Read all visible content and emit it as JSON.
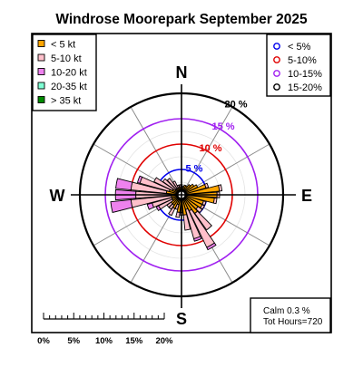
{
  "chart_data": {
    "type": "windrose",
    "title": "Windrose  Moorepark September 2025",
    "compass": {
      "n": "N",
      "e": "E",
      "s": "S",
      "w": "W"
    },
    "rmax_percent": 20,
    "rings": [
      {
        "value": 5,
        "label": "5 %",
        "color": "#0000ee"
      },
      {
        "value": 10,
        "label": "10 %",
        "color": "#e00000"
      },
      {
        "value": 15,
        "label": "15 %",
        "color": "#a020f0"
      },
      {
        "value": 20,
        "label": "20 %",
        "color": "#000000"
      }
    ],
    "speed_classes": [
      {
        "label": "< 5  kt",
        "color": "#ffa500"
      },
      {
        "label": "5-10 kt",
        "color": "#ffc0cb"
      },
      {
        "label": "10-20 kt",
        "color": "#ee82ee"
      },
      {
        "label": "20-35 kt",
        "color": "#7fffd4"
      },
      {
        "label": "> 35 kt",
        "color": "#008b00"
      }
    ],
    "ring_legend": [
      {
        "label": "< 5%",
        "color": "#0000ee"
      },
      {
        "label": "5-10%",
        "color": "#e00000"
      },
      {
        "label": "10-15%",
        "color": "#a020f0"
      },
      {
        "label": "15-20%",
        "color": "#000000"
      }
    ],
    "sector_count": 36,
    "sector_width_deg": 10,
    "sectors": [
      {
        "dir": 0,
        "values": [
          1.5,
          0.5,
          0,
          0,
          0
        ]
      },
      {
        "dir": 10,
        "values": [
          1.5,
          0.2,
          0,
          0,
          0
        ]
      },
      {
        "dir": 20,
        "values": [
          2.0,
          0,
          0,
          0,
          0
        ]
      },
      {
        "dir": 30,
        "values": [
          2.0,
          0,
          0,
          0,
          0
        ]
      },
      {
        "dir": 40,
        "values": [
          2.5,
          0,
          0,
          0,
          0
        ]
      },
      {
        "dir": 50,
        "values": [
          3.0,
          0,
          0,
          0,
          0
        ]
      },
      {
        "dir": 60,
        "values": [
          3.5,
          0,
          0,
          0,
          0
        ]
      },
      {
        "dir": 70,
        "values": [
          5.0,
          0.5,
          0,
          0,
          0
        ]
      },
      {
        "dir": 80,
        "values": [
          7.5,
          0.5,
          0,
          0,
          0
        ]
      },
      {
        "dir": 90,
        "values": [
          7.0,
          0.5,
          0,
          0,
          0
        ]
      },
      {
        "dir": 100,
        "values": [
          6.5,
          0.5,
          0,
          0,
          0
        ]
      },
      {
        "dir": 110,
        "values": [
          4.5,
          0.5,
          0,
          0,
          0
        ]
      },
      {
        "dir": 120,
        "values": [
          4.5,
          0.5,
          0,
          0,
          0
        ]
      },
      {
        "dir": 130,
        "values": [
          4.0,
          1.0,
          0,
          0,
          0
        ]
      },
      {
        "dir": 140,
        "values": [
          4.5,
          4.0,
          0,
          0,
          0
        ]
      },
      {
        "dir": 150,
        "values": [
          3.5,
          8.0,
          0.5,
          0,
          0
        ]
      },
      {
        "dir": 160,
        "values": [
          3.0,
          6.0,
          0.5,
          0,
          0
        ]
      },
      {
        "dir": 170,
        "values": [
          4.0,
          3.0,
          0,
          0,
          0
        ]
      },
      {
        "dir": 180,
        "values": [
          3.5,
          0.5,
          0,
          0,
          0
        ]
      },
      {
        "dir": 190,
        "values": [
          3.5,
          1.0,
          0,
          0,
          0
        ]
      },
      {
        "dir": 200,
        "values": [
          2.0,
          1.0,
          0,
          0,
          0
        ]
      },
      {
        "dir": 210,
        "values": [
          3.0,
          1.5,
          0,
          0,
          0
        ]
      },
      {
        "dir": 220,
        "values": [
          2.5,
          1.0,
          0,
          0,
          0
        ]
      },
      {
        "dir": 230,
        "values": [
          2.5,
          1.0,
          0,
          0,
          0
        ]
      },
      {
        "dir": 240,
        "values": [
          2.0,
          3.0,
          0.5,
          0,
          0
        ]
      },
      {
        "dir": 250,
        "values": [
          2.0,
          4.0,
          1.0,
          0,
          0
        ]
      },
      {
        "dir": 260,
        "values": [
          2.0,
          8.0,
          4.0,
          0,
          0
        ]
      },
      {
        "dir": 270,
        "values": [
          2.0,
          7.0,
          4.0,
          0,
          0
        ]
      },
      {
        "dir": 280,
        "values": [
          3.0,
          7.0,
          3.0,
          0,
          0
        ]
      },
      {
        "dir": 290,
        "values": [
          2.5,
          6.0,
          0.5,
          0,
          0
        ]
      },
      {
        "dir": 300,
        "values": [
          2.0,
          4.0,
          0,
          0,
          0
        ]
      },
      {
        "dir": 310,
        "values": [
          1.5,
          3.0,
          0,
          0,
          0
        ]
      },
      {
        "dir": 320,
        "values": [
          1.5,
          2.5,
          0,
          0,
          0
        ]
      },
      {
        "dir": 330,
        "values": [
          1.5,
          1.5,
          0,
          0,
          0
        ]
      },
      {
        "dir": 340,
        "values": [
          1.5,
          0.5,
          0,
          0,
          0
        ]
      },
      {
        "dir": 350,
        "values": [
          1.5,
          0.5,
          0,
          0,
          0
        ]
      }
    ],
    "calm_text": "Calm 0.3 %",
    "tot_hours_text": "Tot Hours=720",
    "scale_bar_labels": [
      "0%",
      "5%",
      "10%",
      "15%",
      "20%"
    ]
  }
}
